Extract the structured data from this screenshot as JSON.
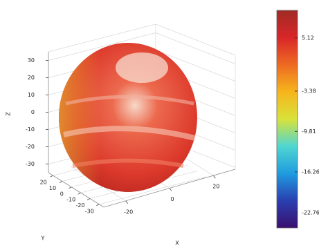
{
  "chart_data": {
    "type": "surface",
    "xlabel": "X",
    "ylabel": "Y",
    "zlabel": "Z",
    "xlim": [
      -30,
      30
    ],
    "xticks": [
      -20,
      0,
      20
    ],
    "ylim": [
      -35,
      25
    ],
    "yticks": [
      20,
      10,
      0,
      -10,
      -20,
      -30
    ],
    "zlim": [
      -35,
      35
    ],
    "zticks": [
      30,
      20,
      10,
      0,
      -10,
      -20,
      -30
    ],
    "grid": true,
    "colormap": [
      "#3a0f6e",
      "#2a3fb0",
      "#1f9be0",
      "#4fd6d0",
      "#d8e23a",
      "#f6b51c",
      "#ee6a22",
      "#d8262a",
      "#a02a24"
    ],
    "clim": [
      -25.2,
      9.5
    ],
    "cticks": [
      5.12,
      -3.38,
      -9.81,
      -16.26,
      -22.76
    ]
  }
}
